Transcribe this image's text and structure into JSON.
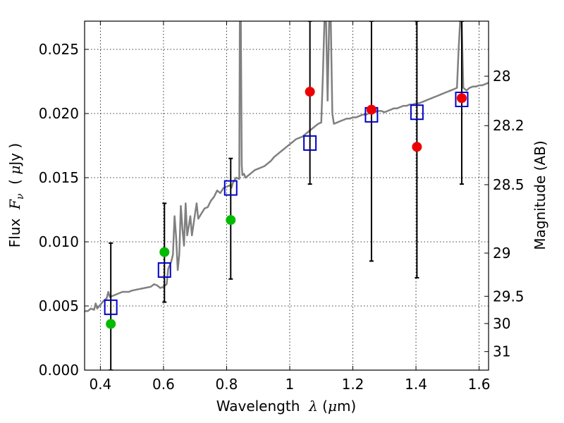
{
  "chart_data": {
    "type": "scatter",
    "xlabel_prefix": "Wavelength  ",
    "xlabel_symbol": "λ",
    "xlabel_unit_open": " (",
    "xlabel_unit_mu": "μ",
    "xlabel_unit_rest": "m)",
    "ylabel_prefix": "Flux  ",
    "ylabel_symbol": "F",
    "ylabel_sub": "ν",
    "ylabel_unit_open": "  ( ",
    "ylabel_unit_mu": "μ",
    "ylabel_unit_rest": "Jy )",
    "ylabel_right": "Magnitude (AB)",
    "xlim": [
      0.35,
      1.63
    ],
    "ylim": [
      0.0,
      0.0272
    ],
    "grid": true,
    "x_ticks": [
      {
        "value": 0.4,
        "label": "0.4"
      },
      {
        "value": 0.6,
        "label": "0.6"
      },
      {
        "value": 0.8,
        "label": "0.8"
      },
      {
        "value": 1.0,
        "label": "1"
      },
      {
        "value": 1.2,
        "label": "1.2"
      },
      {
        "value": 1.4,
        "label": "1.4"
      },
      {
        "value": 1.6,
        "label": "1.6"
      }
    ],
    "y_ticks": [
      {
        "value": 0.0,
        "label": "0.000"
      },
      {
        "value": 0.005,
        "label": "0.005"
      },
      {
        "value": 0.01,
        "label": "0.010"
      },
      {
        "value": 0.015,
        "label": "0.015"
      },
      {
        "value": 0.02,
        "label": "0.020"
      },
      {
        "value": 0.025,
        "label": "0.025"
      }
    ],
    "right_ticks": [
      {
        "mag": 28,
        "label": "28"
      },
      {
        "mag": 28.2,
        "label": "28.2"
      },
      {
        "mag": 28.5,
        "label": "28.5"
      },
      {
        "mag": 29,
        "label": "29"
      },
      {
        "mag": 29.5,
        "label": "29.5"
      },
      {
        "mag": 30,
        "label": "30"
      },
      {
        "mag": 31,
        "label": "31"
      }
    ],
    "series": [
      {
        "name": "template spectrum",
        "kind": "line",
        "color": "#808080",
        "points": [
          [
            0.35,
            0.0046
          ],
          [
            0.36,
            0.0046
          ],
          [
            0.37,
            0.0048
          ],
          [
            0.38,
            0.0047
          ],
          [
            0.385,
            0.0052
          ],
          [
            0.39,
            0.0048
          ],
          [
            0.4,
            0.0051
          ],
          [
            0.41,
            0.0054
          ],
          [
            0.42,
            0.0056
          ],
          [
            0.425,
            0.0061
          ],
          [
            0.43,
            0.0057
          ],
          [
            0.45,
            0.0059
          ],
          [
            0.47,
            0.0061
          ],
          [
            0.49,
            0.0061
          ],
          [
            0.5,
            0.0062
          ],
          [
            0.52,
            0.0063
          ],
          [
            0.54,
            0.0064
          ],
          [
            0.56,
            0.0065
          ],
          [
            0.57,
            0.0067
          ],
          [
            0.58,
            0.0066
          ],
          [
            0.59,
            0.0064
          ],
          [
            0.6,
            0.0065
          ],
          [
            0.61,
            0.0067
          ],
          [
            0.615,
            0.0079
          ],
          [
            0.62,
            0.0082
          ],
          [
            0.625,
            0.0085
          ],
          [
            0.63,
            0.009
          ],
          [
            0.635,
            0.012
          ],
          [
            0.64,
            0.0104
          ],
          [
            0.645,
            0.0078
          ],
          [
            0.65,
            0.009
          ],
          [
            0.655,
            0.0128
          ],
          [
            0.66,
            0.011
          ],
          [
            0.665,
            0.0097
          ],
          [
            0.67,
            0.013
          ],
          [
            0.675,
            0.0105
          ],
          [
            0.68,
            0.0112
          ],
          [
            0.685,
            0.012
          ],
          [
            0.69,
            0.0105
          ],
          [
            0.7,
            0.0122
          ],
          [
            0.705,
            0.013
          ],
          [
            0.71,
            0.0118
          ],
          [
            0.72,
            0.0122
          ],
          [
            0.73,
            0.0126
          ],
          [
            0.74,
            0.0127
          ],
          [
            0.75,
            0.0132
          ],
          [
            0.76,
            0.0135
          ],
          [
            0.77,
            0.014
          ],
          [
            0.78,
            0.0138
          ],
          [
            0.79,
            0.0142
          ],
          [
            0.8,
            0.0143
          ],
          [
            0.81,
            0.0144
          ],
          [
            0.815,
            0.0142
          ],
          [
            0.82,
            0.0146
          ],
          [
            0.825,
            0.0148
          ],
          [
            0.83,
            0.015
          ],
          [
            0.84,
            0.0149
          ],
          [
            0.842,
            0.0272
          ],
          [
            0.845,
            0.0272
          ],
          [
            0.848,
            0.016
          ],
          [
            0.85,
            0.0152
          ],
          [
            0.855,
            0.0153
          ],
          [
            0.86,
            0.015
          ],
          [
            0.87,
            0.0152
          ],
          [
            0.88,
            0.0154
          ],
          [
            0.89,
            0.0156
          ],
          [
            0.9,
            0.0157
          ],
          [
            0.91,
            0.0158
          ],
          [
            0.92,
            0.0159
          ],
          [
            0.93,
            0.0161
          ],
          [
            0.94,
            0.0163
          ],
          [
            0.95,
            0.0166
          ],
          [
            0.96,
            0.0168
          ],
          [
            0.97,
            0.017
          ],
          [
            0.98,
            0.0172
          ],
          [
            0.99,
            0.0174
          ],
          [
            1.0,
            0.0176
          ],
          [
            1.01,
            0.0178
          ],
          [
            1.02,
            0.018
          ],
          [
            1.03,
            0.0181
          ],
          [
            1.04,
            0.0182
          ],
          [
            1.05,
            0.0184
          ],
          [
            1.06,
            0.0186
          ],
          [
            1.07,
            0.0188
          ],
          [
            1.08,
            0.019
          ],
          [
            1.09,
            0.0192
          ],
          [
            1.1,
            0.0193
          ],
          [
            1.105,
            0.023
          ],
          [
            1.11,
            0.0272
          ],
          [
            1.115,
            0.0272
          ],
          [
            1.12,
            0.021
          ],
          [
            1.125,
            0.0272
          ],
          [
            1.13,
            0.0272
          ],
          [
            1.135,
            0.02
          ],
          [
            1.14,
            0.0192
          ],
          [
            1.15,
            0.0193
          ],
          [
            1.16,
            0.0194
          ],
          [
            1.17,
            0.0195
          ],
          [
            1.18,
            0.0196
          ],
          [
            1.19,
            0.0196
          ],
          [
            1.2,
            0.0197
          ],
          [
            1.21,
            0.0197
          ],
          [
            1.22,
            0.0198
          ],
          [
            1.23,
            0.0199
          ],
          [
            1.24,
            0.0199
          ],
          [
            1.25,
            0.02
          ],
          [
            1.26,
            0.0201
          ],
          [
            1.27,
            0.0201
          ],
          [
            1.28,
            0.0202
          ],
          [
            1.29,
            0.0202
          ],
          [
            1.3,
            0.0201
          ],
          [
            1.31,
            0.0202
          ],
          [
            1.32,
            0.0203
          ],
          [
            1.33,
            0.0204
          ],
          [
            1.34,
            0.0204
          ],
          [
            1.35,
            0.0205
          ],
          [
            1.36,
            0.0206
          ],
          [
            1.37,
            0.0206
          ],
          [
            1.38,
            0.0207
          ],
          [
            1.39,
            0.0207
          ],
          [
            1.4,
            0.0208
          ],
          [
            1.41,
            0.0208
          ],
          [
            1.42,
            0.0209
          ],
          [
            1.43,
            0.021
          ],
          [
            1.44,
            0.0211
          ],
          [
            1.45,
            0.0212
          ],
          [
            1.46,
            0.0213
          ],
          [
            1.47,
            0.0214
          ],
          [
            1.48,
            0.0215
          ],
          [
            1.49,
            0.0216
          ],
          [
            1.5,
            0.0217
          ],
          [
            1.51,
            0.0218
          ],
          [
            1.52,
            0.0219
          ],
          [
            1.53,
            0.022
          ],
          [
            1.535,
            0.025
          ],
          [
            1.54,
            0.0272
          ],
          [
            1.545,
            0.0272
          ],
          [
            1.55,
            0.022
          ],
          [
            1.56,
            0.0218
          ],
          [
            1.57,
            0.022
          ],
          [
            1.58,
            0.0221
          ],
          [
            1.59,
            0.0221
          ],
          [
            1.6,
            0.0222
          ],
          [
            1.61,
            0.0222
          ],
          [
            1.62,
            0.0223
          ],
          [
            1.63,
            0.0224
          ]
        ]
      },
      {
        "name": "model photometry",
        "kind": "open-square",
        "color": "#0000cc",
        "points": [
          [
            0.433,
            0.0049
          ],
          [
            0.603,
            0.0078
          ],
          [
            0.813,
            0.0142
          ],
          [
            1.064,
            0.0177
          ],
          [
            1.259,
            0.0199
          ],
          [
            1.403,
            0.0201
          ],
          [
            1.545,
            0.0211
          ]
        ]
      },
      {
        "name": "observed photometry (green)",
        "kind": "filled-circle",
        "color": "#00bb00",
        "points": [
          [
            0.433,
            0.0036
          ],
          [
            0.603,
            0.0092
          ],
          [
            0.813,
            0.0117
          ]
        ]
      },
      {
        "name": "observed photometry (red)",
        "kind": "filled-circle",
        "color": "#ee0000",
        "points": [
          [
            1.064,
            0.0217
          ],
          [
            1.259,
            0.0203
          ],
          [
            1.403,
            0.0174
          ],
          [
            1.545,
            0.0212
          ]
        ]
      }
    ],
    "error_bars": [
      {
        "x": 0.433,
        "low": 0.0,
        "high": 0.0099
      },
      {
        "x": 0.603,
        "low": 0.0053,
        "high": 0.013
      },
      {
        "x": 0.813,
        "low": 0.0071,
        "high": 0.0165
      },
      {
        "x": 1.064,
        "low": 0.0145,
        "high": 0.0272
      },
      {
        "x": 1.259,
        "low": 0.0085,
        "high": 0.0272
      },
      {
        "x": 1.403,
        "low": 0.0072,
        "high": 0.0272
      },
      {
        "x": 1.545,
        "low": 0.0145,
        "high": 0.0272
      }
    ]
  }
}
